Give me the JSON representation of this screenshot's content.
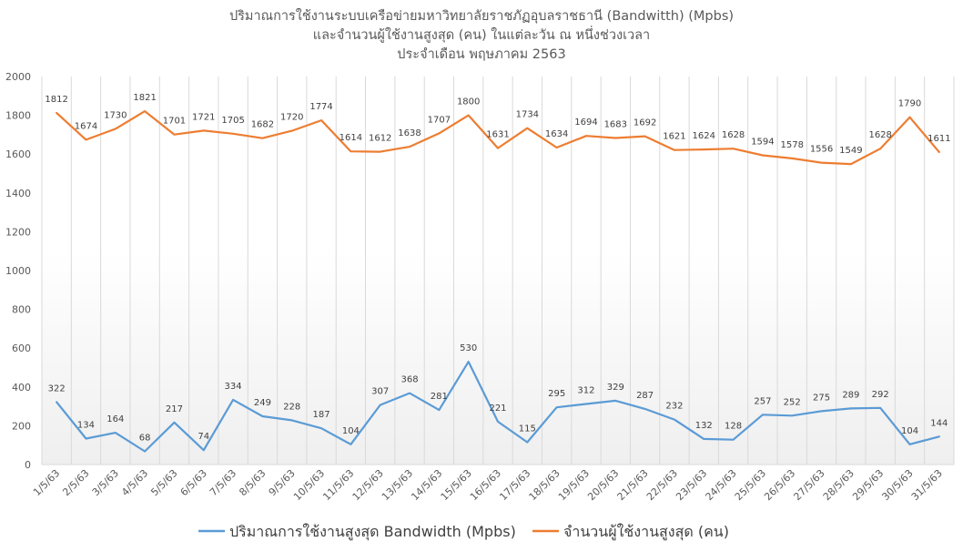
{
  "chart_data": {
    "type": "line",
    "title": [
      "ปริมาณการใช้งานระบบเครือข่ายมหาวิทยาลัยราชภัฏอุบลราชธานี (Bandwitth) (Mpbs)",
      "และจำนวนผู้ใช้งานสูงสุด (คน) ในแต่ละวัน ณ หนึ่งช่วงเวลา",
      "ประจำเดือน พฤษภาคม 2563"
    ],
    "categories": [
      "1/5/63",
      "2/5/63",
      "3/5/63",
      "4/5/63",
      "5/5/63",
      "6/5/63",
      "7/5/63",
      "8/5/63",
      "9/5/63",
      "10/5/63",
      "11/5/63",
      "12/5/63",
      "13/5/63",
      "14/5/63",
      "15/5/63",
      "16/5/63",
      "17/5/63",
      "18/5/63",
      "19/5/63",
      "20/5/63",
      "21/5/63",
      "22/5/63",
      "23/5/63",
      "24/5/63",
      "25/5/63",
      "26/5/63",
      "27/5/63",
      "28/5/63",
      "29/5/63",
      "30/5/63",
      "31/5/63"
    ],
    "series": [
      {
        "name": "ปริมาณการใช้งานสูงสุด Bandwidth (Mpbs)",
        "color": "#5B9BD5",
        "values": [
          322,
          134,
          164,
          68,
          217,
          74,
          334,
          249,
          228,
          187,
          104,
          307,
          368,
          281,
          530,
          221,
          115,
          295,
          312,
          329,
          287,
          232,
          132,
          128,
          257,
          252,
          275,
          289,
          292,
          104,
          144
        ]
      },
      {
        "name": "จำนวนผู้ใช้งานสูงสุด (คน)",
        "color": "#ED7D31",
        "values": [
          1812,
          1674,
          1730,
          1821,
          1701,
          1721,
          1705,
          1682,
          1720,
          1774,
          1614,
          1612,
          1638,
          1707,
          1800,
          1631,
          1734,
          1634,
          1694,
          1683,
          1692,
          1621,
          1624,
          1628,
          1594,
          1578,
          1556,
          1549,
          1628,
          1790,
          1611
        ]
      }
    ],
    "yticks": [
      "0",
      "200",
      "400",
      "600",
      "800",
      "1000",
      "1200",
      "1400",
      "1600",
      "1800",
      "2000"
    ],
    "ylim": [
      0,
      2000
    ],
    "grid": "vertical",
    "legend": "bottom"
  }
}
